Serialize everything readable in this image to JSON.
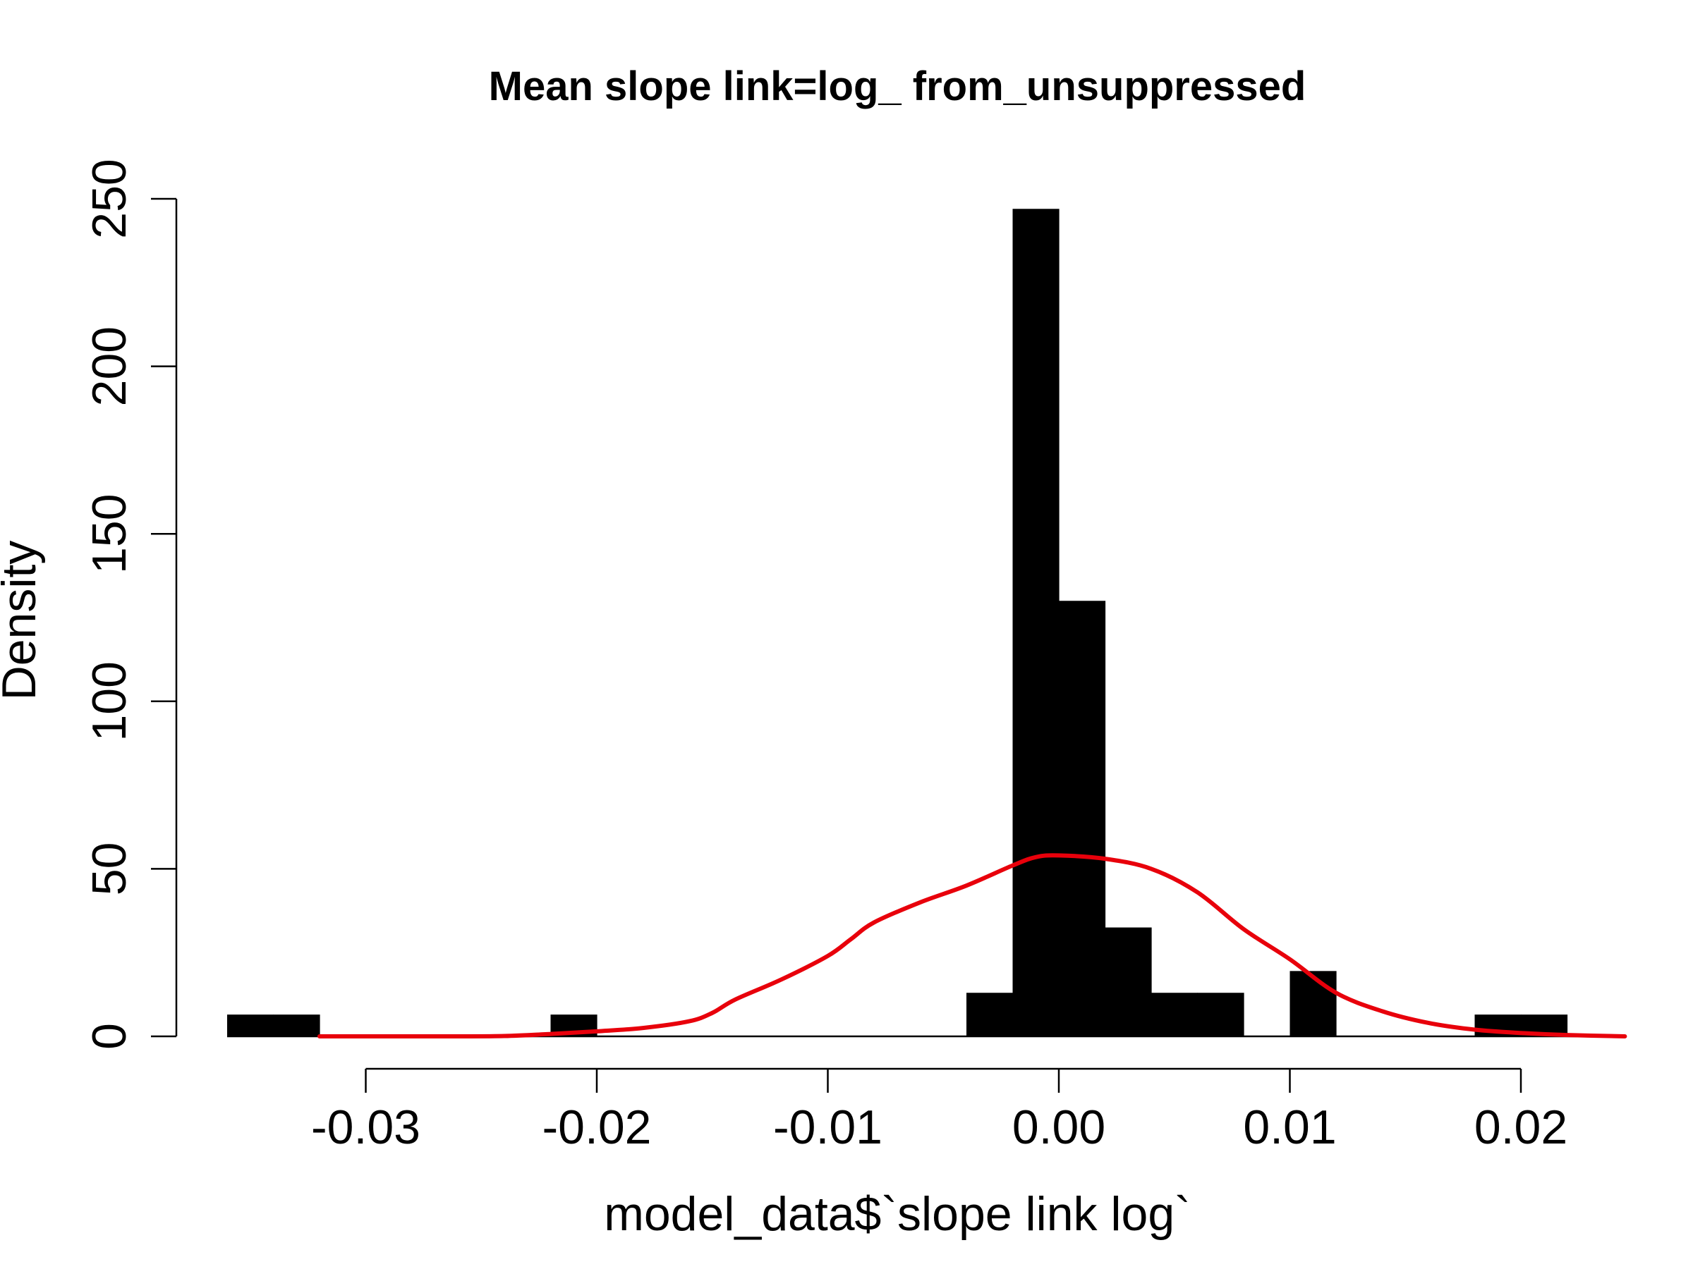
{
  "chart_data": {
    "type": "bar",
    "title": "Mean slope link=log_ from_unsuppressed",
    "xlabel": "model_data$`slope link log`",
    "ylabel": "Density",
    "xlim": [
      -0.0365,
      0.0245
    ],
    "ylim": [
      0,
      250
    ],
    "x_ticks": [
      {
        "value": -0.03,
        "label": "-0.03"
      },
      {
        "value": -0.02,
        "label": "-0.02"
      },
      {
        "value": -0.01,
        "label": "-0.01"
      },
      {
        "value": 0.0,
        "label": "0.00"
      },
      {
        "value": 0.01,
        "label": "0.01"
      },
      {
        "value": 0.02,
        "label": "0.02"
      }
    ],
    "y_ticks": [
      {
        "value": 0,
        "label": "0"
      },
      {
        "value": 50,
        "label": "50"
      },
      {
        "value": 100,
        "label": "100"
      },
      {
        "value": 150,
        "label": "150"
      },
      {
        "value": 200,
        "label": "200"
      },
      {
        "value": 250,
        "label": "250"
      }
    ],
    "bins": [
      {
        "x0": -0.036,
        "x1": -0.034,
        "density": 6.5
      },
      {
        "x0": -0.034,
        "x1": -0.032,
        "density": 6.5
      },
      {
        "x0": -0.022,
        "x1": -0.02,
        "density": 6.5
      },
      {
        "x0": -0.004,
        "x1": -0.002,
        "density": 13
      },
      {
        "x0": -0.002,
        "x1": 0.0,
        "density": 247
      },
      {
        "x0": 0.0,
        "x1": 0.002,
        "density": 130
      },
      {
        "x0": 0.002,
        "x1": 0.004,
        "density": 32.5
      },
      {
        "x0": 0.004,
        "x1": 0.006,
        "density": 13
      },
      {
        "x0": 0.006,
        "x1": 0.008,
        "density": 13
      },
      {
        "x0": 0.01,
        "x1": 0.012,
        "density": 19.5
      },
      {
        "x0": 0.018,
        "x1": 0.02,
        "density": 6.5
      },
      {
        "x0": 0.02,
        "x1": 0.022,
        "density": 6.5
      }
    ],
    "density_curve": {
      "color": "#e8000b",
      "x": [
        -0.032,
        -0.03,
        -0.028,
        -0.026,
        -0.024,
        -0.022,
        -0.02,
        -0.018,
        -0.016,
        -0.015,
        -0.014,
        -0.012,
        -0.01,
        -0.009,
        -0.008,
        -0.006,
        -0.004,
        -0.002,
        -0.001,
        0.0,
        0.002,
        0.004,
        0.006,
        0.008,
        0.01,
        0.012,
        0.014,
        0.016,
        0.018,
        0.02,
        0.022,
        0.0245
      ],
      "y": [
        0.0,
        0.0,
        0.0,
        0.0,
        0.1,
        0.7,
        1.5,
        2.5,
        4.5,
        7.0,
        11.0,
        17.0,
        24.0,
        29.0,
        34.0,
        40.0,
        45.0,
        51.0,
        53.5,
        54.0,
        53.0,
        50.0,
        43.0,
        32.0,
        23.0,
        13.0,
        7.5,
        4.0,
        2.0,
        1.0,
        0.4,
        0.0
      ]
    }
  }
}
